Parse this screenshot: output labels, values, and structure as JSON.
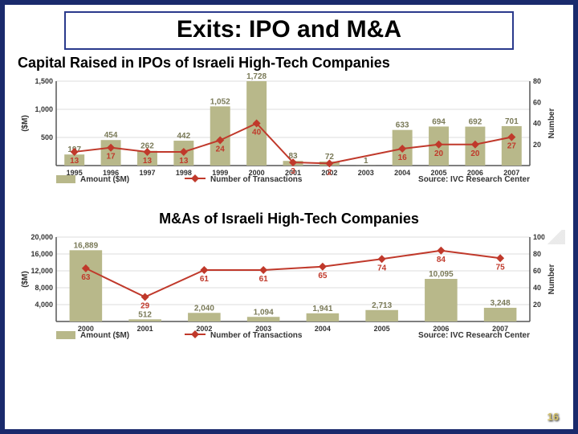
{
  "slide": {
    "title": "Exits: IPO and M&A",
    "page_number": "16",
    "background_color": "#1a2a6c",
    "panel_color": "#ffffff",
    "title_border_color": "#2a3a8c"
  },
  "chart1": {
    "title": "Capital Raised in IPOs of Israeli High-Tech Companies",
    "type": "bar+line",
    "categories": [
      "1995",
      "1996",
      "1997",
      "1998",
      "1999",
      "2000",
      "2001",
      "2002",
      "2003",
      "2004",
      "2005",
      "2006",
      "2007"
    ],
    "bars": {
      "label": "Amount ($M)",
      "values": [
        197,
        454,
        262,
        442,
        1052,
        1728,
        83,
        72,
        1,
        633,
        694,
        692,
        701
      ],
      "color": "#b8b88a"
    },
    "line": {
      "label": "Number of Transactions",
      "values": [
        13,
        17,
        13,
        13,
        24,
        40,
        3,
        2,
        null,
        16,
        20,
        20,
        27
      ],
      "color": "#c0392b",
      "marker": "diamond",
      "marker_size": 5
    },
    "y_left": {
      "label": "($M)",
      "min": 0,
      "max": 1500,
      "ticks": [
        500,
        1000,
        1500
      ]
    },
    "y_right": {
      "label": "Number",
      "min": 0,
      "max": 80,
      "ticks": [
        20,
        40,
        60,
        80
      ]
    },
    "source": "Source: IVC Research Center",
    "grid_color": "#dddddd",
    "axis_color": "#555555"
  },
  "chart2": {
    "title": "M&As of Israeli High-Tech Companies",
    "type": "bar+line",
    "categories": [
      "2000",
      "2001",
      "2002",
      "2003",
      "2004",
      "2005",
      "2006",
      "2007"
    ],
    "bars": {
      "label": "Amount ($M)",
      "values": [
        16889,
        512,
        2040,
        1094,
        1941,
        2713,
        10095,
        3248
      ],
      "color": "#b8b88a"
    },
    "line": {
      "label": "Number of Transactions",
      "values": [
        63,
        29,
        61,
        61,
        65,
        74,
        84,
        75
      ],
      "color": "#c0392b",
      "marker": "diamond",
      "marker_size": 5
    },
    "y_left": {
      "label": "($M)",
      "min": 0,
      "max": 20000,
      "ticks": [
        4000,
        8000,
        12000,
        16000,
        20000
      ]
    },
    "y_right": {
      "label": "Number",
      "min": 0,
      "max": 100,
      "ticks": [
        20,
        40,
        60,
        80,
        100
      ]
    },
    "source": "Source: IVC Research Center",
    "grid_color": "#dddddd",
    "axis_color": "#555555"
  }
}
